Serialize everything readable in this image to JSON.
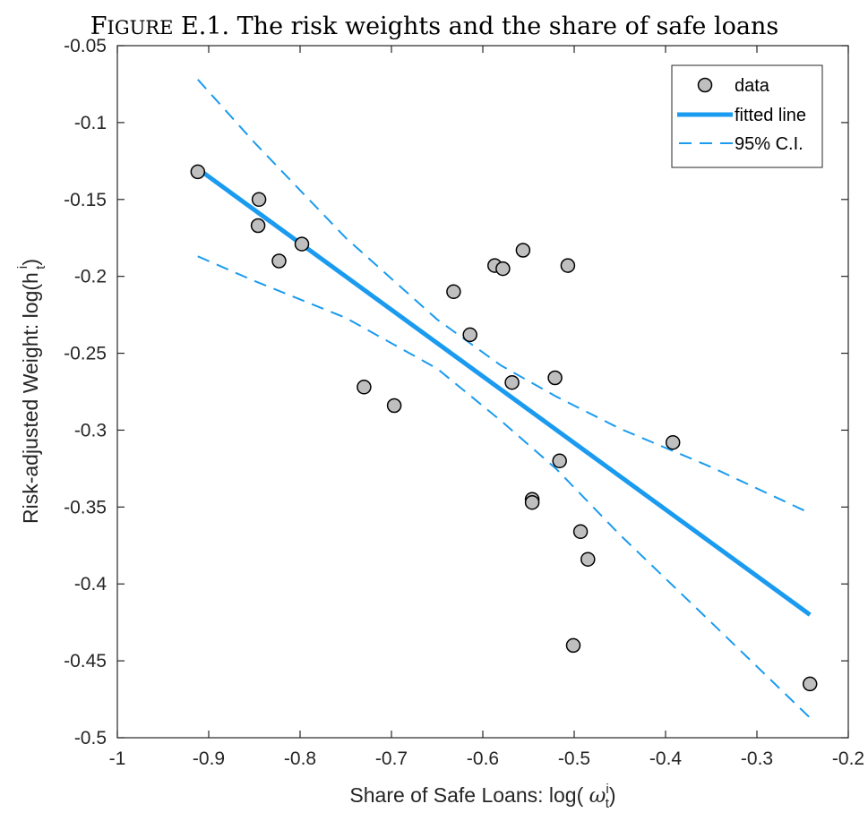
{
  "chart_data": {
    "type": "scatter",
    "title": "Figure E.1. The risk weights and the share of safe loans",
    "xlabel": "Share of Safe Loans: log( ω_t^i)",
    "ylabel": "Risk-adjusted Weight: log(h_t^i)",
    "xlim": [
      -1,
      -0.2
    ],
    "ylim": [
      -0.5,
      -0.05
    ],
    "xticks": [
      -1,
      -0.9,
      -0.8,
      -0.7,
      -0.6,
      -0.5,
      -0.4,
      -0.3,
      -0.2
    ],
    "yticks": [
      -0.5,
      -0.45,
      -0.4,
      -0.35,
      -0.3,
      -0.25,
      -0.2,
      -0.15,
      -0.1,
      -0.05
    ],
    "grid": false,
    "legend_position": "top-right",
    "series": [
      {
        "name": "data",
        "kind": "scatter",
        "color": "#bfbfbf",
        "points": [
          [
            -0.912,
            -0.132
          ],
          [
            -0.845,
            -0.15
          ],
          [
            -0.846,
            -0.167
          ],
          [
            -0.823,
            -0.19
          ],
          [
            -0.798,
            -0.179
          ],
          [
            -0.73,
            -0.272
          ],
          [
            -0.697,
            -0.284
          ],
          [
            -0.632,
            -0.21
          ],
          [
            -0.614,
            -0.238
          ],
          [
            -0.587,
            -0.193
          ],
          [
            -0.578,
            -0.195
          ],
          [
            -0.556,
            -0.183
          ],
          [
            -0.568,
            -0.269
          ],
          [
            -0.521,
            -0.266
          ],
          [
            -0.507,
            -0.193
          ],
          [
            -0.516,
            -0.32
          ],
          [
            -0.546,
            -0.345
          ],
          [
            -0.546,
            -0.347
          ],
          [
            -0.493,
            -0.366
          ],
          [
            -0.485,
            -0.384
          ],
          [
            -0.501,
            -0.44
          ],
          [
            -0.392,
            -0.308
          ],
          [
            -0.242,
            -0.465
          ]
        ]
      },
      {
        "name": "fitted line",
        "kind": "line",
        "color": "#1a9bef",
        "points": [
          [
            -0.912,
            -0.13
          ],
          [
            -0.242,
            -0.42
          ]
        ]
      },
      {
        "name": "95% C.I.",
        "kind": "dashed",
        "color": "#1a9bef",
        "points": [
          [
            -0.912,
            -0.072
          ],
          [
            -0.85,
            -0.113
          ],
          [
            -0.75,
            -0.175
          ],
          [
            -0.65,
            -0.228
          ],
          [
            -0.58,
            -0.258
          ],
          [
            -0.52,
            -0.278
          ],
          [
            -0.45,
            -0.299
          ],
          [
            -0.35,
            -0.324
          ],
          [
            -0.242,
            -0.354
          ]
        ]
      },
      {
        "name": "95% C.I. lower",
        "kind": "dashed",
        "color": "#1a9bef",
        "points": [
          [
            -0.912,
            -0.187
          ],
          [
            -0.85,
            -0.203
          ],
          [
            -0.75,
            -0.227
          ],
          [
            -0.65,
            -0.26
          ],
          [
            -0.58,
            -0.294
          ],
          [
            -0.52,
            -0.325
          ],
          [
            -0.45,
            -0.368
          ],
          [
            -0.35,
            -0.425
          ],
          [
            -0.242,
            -0.487
          ]
        ]
      }
    ]
  }
}
